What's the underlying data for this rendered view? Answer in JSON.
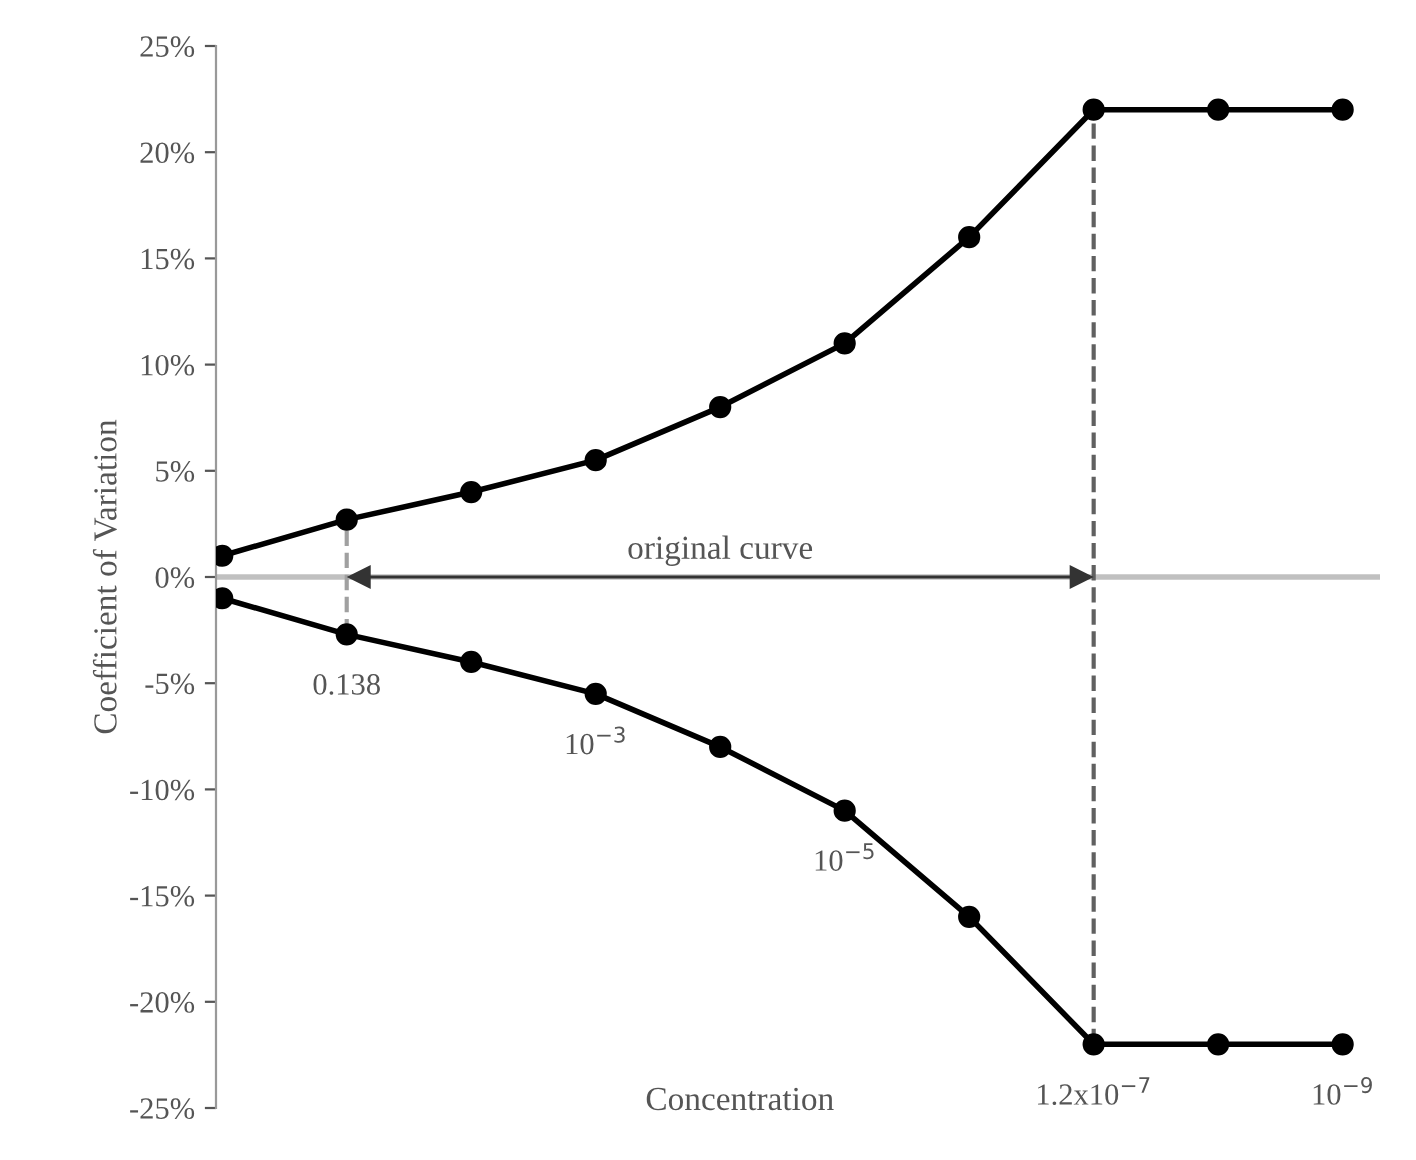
{
  "chart_data": {
    "type": "line",
    "xlabel": "Concentration",
    "ylabel": "Coefficient of Variation",
    "categories": [
      null,
      "0.138",
      null,
      "10$^{−3}$",
      null,
      "10$^{−5}$",
      null,
      "1.2x10$^{−7}$",
      null,
      "10$^{−9}$"
    ],
    "series": [
      {
        "color": "#000000",
        "values": [
          1,
          2.7,
          4,
          5.5,
          8,
          11,
          16,
          22,
          22,
          22
        ]
      },
      {
        "color": "#000000",
        "values": [
          -1,
          -2.7,
          -4,
          -5.5,
          -8,
          -11,
          -16,
          -22,
          -22,
          -22
        ]
      }
    ],
    "marker": "circle",
    "line_style": "solid",
    "ylim": [
      -25,
      25
    ],
    "yticks": [
      {
        "value": 25,
        "label": "25%"
      },
      {
        "value": 20,
        "label": "20%"
      },
      {
        "value": 15,
        "label": "15%"
      },
      {
        "value": 10,
        "label": "10%"
      },
      {
        "value": 5,
        "label": "5%"
      },
      {
        "value": 0,
        "label": "0%"
      },
      {
        "value": -5,
        "label": "-5%"
      },
      {
        "value": -10,
        "label": "-10%"
      },
      {
        "value": -15,
        "label": "-15%"
      },
      {
        "value": -20,
        "label": "-20%"
      },
      {
        "value": -25,
        "label": "-25%"
      }
    ],
    "ref_lines": [
      {
        "axis": "y",
        "value": 0,
        "color": "#c0c0c0",
        "line_style": "solid"
      },
      {
        "axis": "x",
        "value": "0.138",
        "color": "#a0a0a0",
        "line_style": "dashed"
      },
      {
        "axis": "x",
        "value": "1.2x10$^{−7}$",
        "color": "#606060",
        "line_style": "dashed"
      }
    ],
    "annotations": [
      "original curve"
    ],
    "grid": false,
    "legend": false
  }
}
